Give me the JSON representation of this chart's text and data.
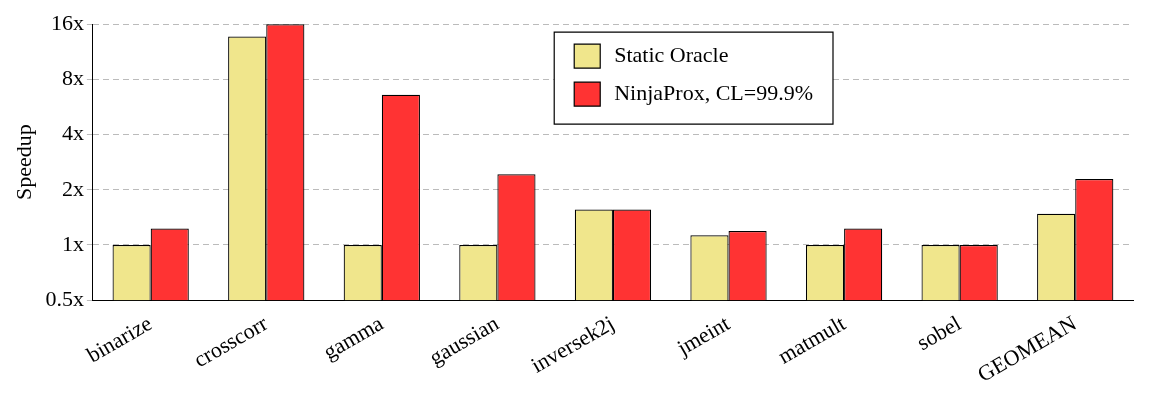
{
  "chart_data": {
    "type": "bar",
    "ylabel": "Speedup",
    "categories": [
      "binarize",
      "crosscorr",
      "gamma",
      "gaussian",
      "inversek2j",
      "jmeint",
      "matmult",
      "sobel",
      "GEOMEAN"
    ],
    "series": [
      {
        "name": "Static Oracle",
        "color": "#f0e68c",
        "values": [
          1,
          13.7,
          1,
          1,
          1.56,
          1.13,
          1,
          1,
          1.48
        ]
      },
      {
        "name": "NinjaProx, CL=99.9%",
        "color": "#ff3333",
        "values": [
          1.23,
          16,
          6.6,
          2.43,
          1.56,
          1.19,
          1.23,
          1,
          2.29
        ]
      }
    ],
    "log": "y",
    "ylim": [
      0.5,
      16
    ],
    "yticks": [
      {
        "value": 0.5,
        "label": "0.5x"
      },
      {
        "value": 1,
        "label": "1x"
      },
      {
        "value": 2,
        "label": "2x"
      },
      {
        "value": 4,
        "label": "4x"
      },
      {
        "value": 8,
        "label": "8x"
      },
      {
        "value": 16,
        "label": "16x"
      }
    ],
    "grid": "y",
    "legend": "top right"
  }
}
